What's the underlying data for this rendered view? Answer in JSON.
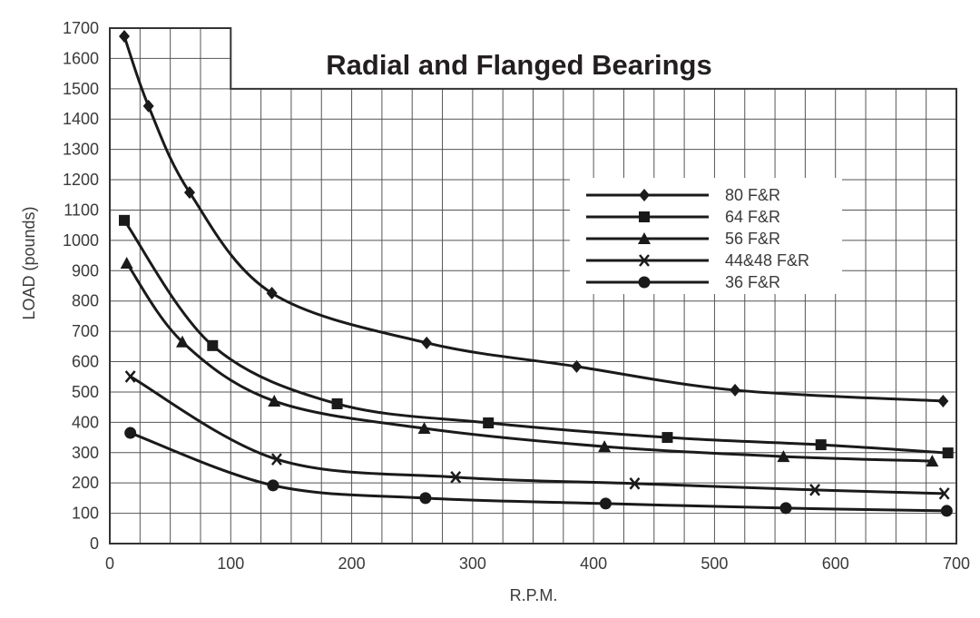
{
  "chart_data": {
    "type": "line",
    "title": "Radial and Flanged Bearings",
    "xlabel": "R.P.M.",
    "ylabel": "LOAD (pounds)",
    "xlim": [
      0,
      700
    ],
    "ylim": [
      0,
      1700
    ],
    "x_ticks": [
      0,
      100,
      200,
      300,
      400,
      500,
      600,
      700
    ],
    "y_ticks": [
      0,
      100,
      200,
      300,
      400,
      500,
      600,
      700,
      800,
      900,
      1000,
      1100,
      1200,
      1300,
      1400,
      1500,
      1600,
      1700
    ],
    "grid": {
      "x_step": 25,
      "y_step": 100
    },
    "legend_position": "upper right (inside plot)",
    "series": [
      {
        "name": "80 F&R",
        "marker": "diamond",
        "x": [
          12,
          32,
          66,
          134,
          262,
          386,
          517,
          689
        ],
        "y": [
          1673,
          1443,
          1158,
          826,
          662,
          584,
          506,
          470
        ]
      },
      {
        "name": "64 F&R",
        "marker": "square",
        "x": [
          12,
          85,
          188,
          313,
          461,
          588,
          693
        ],
        "y": [
          1066,
          653,
          461,
          398,
          350,
          326,
          299
        ]
      },
      {
        "name": "56 F&R",
        "marker": "triangle",
        "x": [
          14,
          60,
          136,
          260,
          409,
          557,
          680
        ],
        "y": [
          925,
          665,
          470,
          380,
          320,
          287,
          272
        ]
      },
      {
        "name": "44&48 F&R",
        "marker": "x",
        "x": [
          17,
          138,
          286,
          434,
          583,
          690
        ],
        "y": [
          551,
          278,
          219,
          198,
          177,
          165
        ]
      },
      {
        "name": "36 F&R",
        "marker": "circle",
        "x": [
          17,
          135,
          261,
          410,
          559,
          692
        ],
        "y": [
          365,
          192,
          150,
          132,
          117,
          108
        ]
      }
    ]
  },
  "colors": {
    "line": "#1a1a1a",
    "grid": "#555555",
    "text": "#3a3a3a",
    "background": "#ffffff"
  }
}
